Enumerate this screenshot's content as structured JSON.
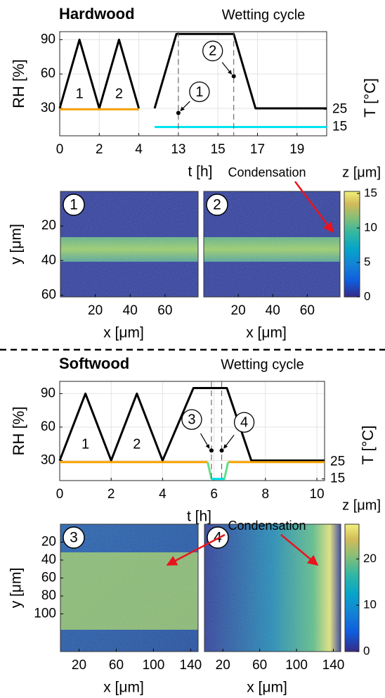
{
  "chart_data": [
    {
      "type": "line",
      "title": "Hardwood",
      "subtitle": "Wetting cycle",
      "xlabel": "t [h]",
      "ylabel": "RH [%]",
      "y2label": "T [°C]",
      "xlim": [
        0,
        20.5
      ],
      "xbreak": [
        4.3,
        11.3
      ],
      "xticks": [
        0,
        2,
        4,
        13,
        15,
        17,
        19
      ],
      "ylim": [
        6,
        97
      ],
      "yticks": [
        30,
        60,
        90
      ],
      "y2lim": [
        10,
        69
      ],
      "y2ticks": [
        15,
        25
      ],
      "grid": true,
      "series": [
        {
          "color": "#000000",
          "x": [
            0,
            1,
            2,
            3,
            4,
            null,
            11.8,
            12.9,
            15.8,
            16.9,
            20.5
          ],
          "values": [
            30,
            90,
            30,
            90,
            30,
            null,
            30,
            95,
            95,
            30,
            30
          ]
        },
        {
          "color": "#f5a300",
          "axis": "y2",
          "x": [
            0,
            4
          ],
          "values": [
            25,
            25
          ]
        },
        {
          "color": "#00e5ee",
          "axis": "y2",
          "x": [
            11.8,
            20.5
          ],
          "values": [
            15,
            15
          ]
        }
      ],
      "annotations": [
        {
          "text": "1",
          "x": 1,
          "y": 42
        },
        {
          "text": "2",
          "x": 3,
          "y": 42
        }
      ],
      "markers": [
        {
          "label": "1",
          "x": 13,
          "y": 26
        },
        {
          "label": "2",
          "x": 15.8,
          "y": 58
        }
      ]
    },
    {
      "type": "image",
      "badge": "1",
      "xlabel": "x [μm]",
      "ylabel": "y [μm]",
      "xlim": [
        0,
        79
      ],
      "ylim": [
        0,
        61
      ],
      "xticks": [
        20,
        40,
        60
      ],
      "yticks": [
        20,
        40,
        60
      ]
    },
    {
      "type": "image",
      "badge": "2",
      "xlabel": "x [μm]",
      "xlim": [
        0,
        79
      ],
      "xticks": [
        20,
        40,
        60
      ],
      "annotation": "Condensation"
    },
    {
      "type": "colorbar",
      "title": "z [μm]",
      "lim": [
        0,
        15.3
      ],
      "ticks": [
        0,
        5,
        10,
        15
      ]
    },
    {
      "type": "line",
      "title": "Softwood",
      "subtitle": "Wetting cycle",
      "xlabel": "t [h]",
      "ylabel": "RH [%]",
      "y2label": "T [°C]",
      "xlim": [
        0,
        10.3
      ],
      "xticks": [
        0,
        2,
        4,
        6,
        8,
        10
      ],
      "ylim": [
        12,
        101
      ],
      "yticks": [
        30,
        60,
        90
      ],
      "y2lim": [
        14,
        73
      ],
      "y2ticks": [
        15,
        25
      ],
      "grid": true,
      "series": [
        {
          "color": "#000000",
          "x": [
            0,
            1,
            2,
            3,
            4,
            5.2,
            6.5,
            7.45,
            10.3
          ],
          "values": [
            30,
            90,
            30,
            90,
            30,
            95,
            95,
            30,
            30
          ]
        },
        {
          "color": "#f5a300",
          "axis": "y2",
          "x": [
            0,
            5.75,
            6.15,
            6.55,
            10.3
          ],
          "values": [
            25,
            25,
            null,
            25,
            25
          ]
        },
        {
          "color": "#5fe08a",
          "axis": "y2",
          "x": [
            5.75,
            5.9,
            6.4,
            6.55
          ],
          "values": [
            25,
            15,
            15,
            25
          ]
        },
        {
          "color": "#00e5ee",
          "axis": "y2",
          "x": [
            5.9,
            6.4
          ],
          "values": [
            15,
            15
          ]
        }
      ],
      "annotations": [
        {
          "text": "1",
          "x": 1,
          "y": 44
        },
        {
          "text": "2",
          "x": 3,
          "y": 44
        }
      ],
      "markers": [
        {
          "label": "3",
          "x": 5.9,
          "y": 39
        },
        {
          "label": "4",
          "x": 6.3,
          "y": 39
        }
      ]
    },
    {
      "type": "image",
      "badge": "3",
      "xlabel": "x [μm]",
      "ylabel": "y [μm]",
      "xlim": [
        0,
        148
      ],
      "ylim": [
        0,
        142
      ],
      "xticks": [
        20,
        60,
        100,
        140
      ],
      "yticks": [
        20,
        40,
        60,
        80,
        100
      ]
    },
    {
      "type": "image",
      "badge": "4",
      "xlabel": "x [μm]",
      "xlim": [
        0,
        148
      ],
      "xticks": [
        20,
        60,
        100,
        140
      ],
      "annotation": "Condensation"
    },
    {
      "type": "colorbar",
      "title": "z [μm]",
      "lim": [
        0,
        27.5
      ],
      "ticks": [
        0,
        10,
        20
      ]
    }
  ]
}
